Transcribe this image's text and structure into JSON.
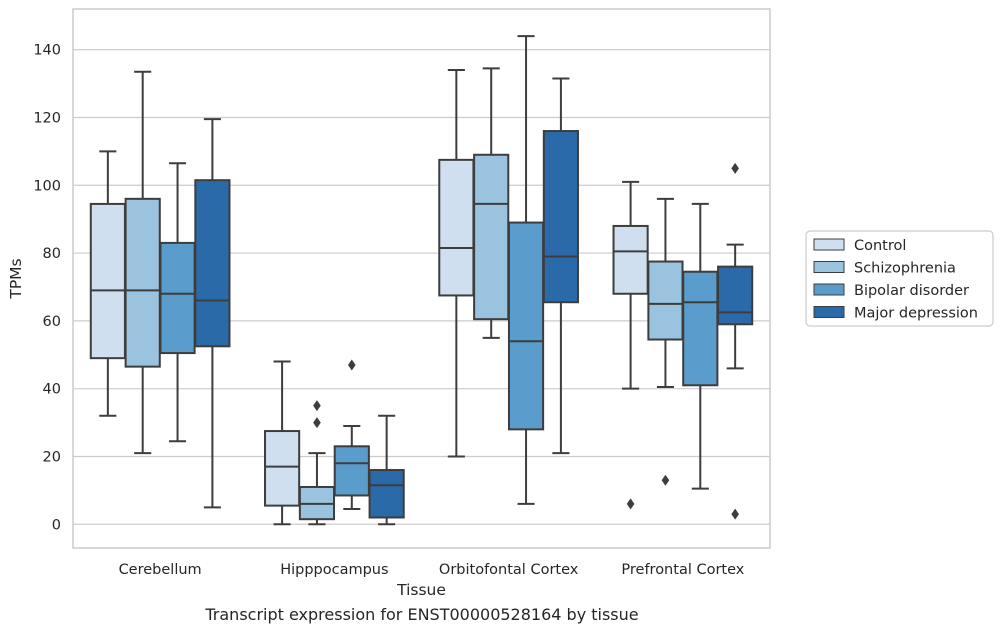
{
  "caption": "Transcript expression for ENST00000528164 by tissue",
  "chart_data": {
    "type": "box",
    "xlabel": "Tissue",
    "ylabel": "TPMs",
    "ylim": [
      -7,
      152
    ],
    "yticks": [
      0,
      20,
      40,
      60,
      80,
      100,
      120,
      140
    ],
    "grid": "horizontal",
    "legend_position": "right",
    "categories": [
      "Cerebellum",
      "Hipppocampus",
      "Orbitofontal Cortex",
      "Prefrontal Cortex"
    ],
    "series": [
      {
        "name": "Control",
        "color": "#cfdfef",
        "boxes": [
          {
            "whislo": 32,
            "q1": 49,
            "med": 69,
            "q3": 94.5,
            "whishi": 110,
            "fliers": []
          },
          {
            "whislo": 0,
            "q1": 5.5,
            "med": 17,
            "q3": 27.5,
            "whishi": 48,
            "fliers": []
          },
          {
            "whislo": 20,
            "q1": 67.5,
            "med": 81.5,
            "q3": 107.5,
            "whishi": 134,
            "fliers": []
          },
          {
            "whislo": 40,
            "q1": 68,
            "med": 80.5,
            "q3": 88,
            "whishi": 101,
            "fliers": [
              6
            ]
          }
        ]
      },
      {
        "name": "Schizophrenia",
        "color": "#9ac3df",
        "boxes": [
          {
            "whislo": 21,
            "q1": 46.5,
            "med": 69,
            "q3": 96,
            "whishi": 133.5,
            "fliers": []
          },
          {
            "whislo": 0,
            "q1": 1.5,
            "med": 6,
            "q3": 11,
            "whishi": 21,
            "fliers": [
              35,
              30
            ]
          },
          {
            "whislo": 55,
            "q1": 60.5,
            "med": 94.5,
            "q3": 109,
            "whishi": 134.5,
            "fliers": []
          },
          {
            "whislo": 40.5,
            "q1": 54.5,
            "med": 65,
            "q3": 77.5,
            "whishi": 96,
            "fliers": [
              13
            ]
          }
        ]
      },
      {
        "name": "Bipolar disorder",
        "color": "#5a9ccb",
        "boxes": [
          {
            "whislo": 24.5,
            "q1": 50.5,
            "med": 68,
            "q3": 83,
            "whishi": 106.5,
            "fliers": []
          },
          {
            "whislo": 4.5,
            "q1": 8.5,
            "med": 18,
            "q3": 23,
            "whishi": 29,
            "fliers": [
              47
            ]
          },
          {
            "whislo": 6,
            "q1": 28,
            "med": 54,
            "q3": 89,
            "whishi": 144,
            "fliers": []
          },
          {
            "whislo": 10.5,
            "q1": 41,
            "med": 65.5,
            "q3": 74.5,
            "whishi": 94.5,
            "fliers": []
          }
        ]
      },
      {
        "name": "Major depression",
        "color": "#2b6aa9",
        "boxes": [
          {
            "whislo": 5,
            "q1": 52.5,
            "med": 66,
            "q3": 101.5,
            "whishi": 119.5,
            "fliers": []
          },
          {
            "whislo": 0,
            "q1": 2,
            "med": 11.5,
            "q3": 16,
            "whishi": 32,
            "fliers": []
          },
          {
            "whislo": 21,
            "q1": 65.5,
            "med": 79,
            "q3": 116,
            "whishi": 131.5,
            "fliers": []
          },
          {
            "whislo": 46,
            "q1": 59,
            "med": 62.5,
            "q3": 76,
            "whishi": 82.5,
            "fliers": [
              105,
              3
            ]
          }
        ]
      }
    ]
  }
}
